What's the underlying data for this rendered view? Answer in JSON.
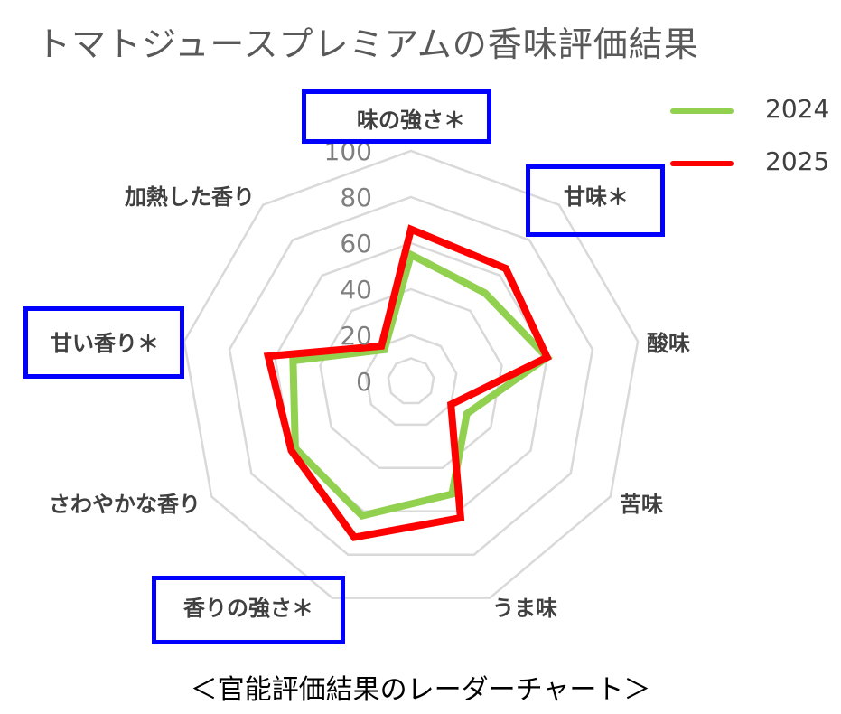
{
  "title": "トマトジュースプレミアムの香味評価結果",
  "caption": "＜官能評価結果のレーダーチャート＞",
  "colors": {
    "grid": "#d9d9d9",
    "highlight_box": "#0000ff"
  },
  "chart_data": {
    "type": "radar",
    "title": "トマトジュースプレミアムの香味評価結果",
    "categories": [
      "味の強さ＊",
      "甘味＊",
      "酸味",
      "苦味",
      "うま味",
      "香りの強さ＊",
      "さわやかな香り",
      "甘い香り＊",
      "加熱した香り"
    ],
    "highlighted_categories": [
      "味の強さ＊",
      "甘味＊",
      "甘い香り＊",
      "香りの強さ＊"
    ],
    "radial_ticks": [
      "0",
      "20",
      "40",
      "60",
      "80",
      "100"
    ],
    "rlim": [
      0,
      100
    ],
    "grid": true,
    "legend_position": "top-right",
    "series": [
      {
        "name": "2024",
        "color": "#92d050",
        "values": [
          55,
          50,
          60,
          28,
          52,
          62,
          58,
          52,
          18
        ]
      },
      {
        "name": "2025",
        "color": "#ff0000",
        "values": [
          66,
          64,
          60,
          20,
          63,
          72,
          60,
          63,
          20
        ]
      }
    ]
  }
}
